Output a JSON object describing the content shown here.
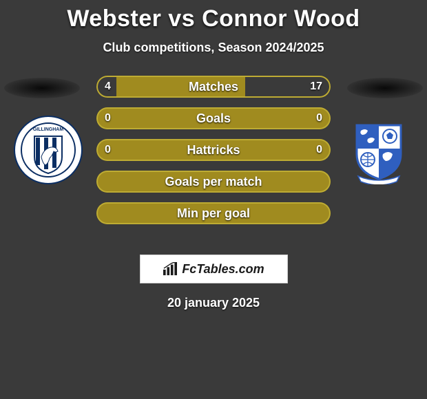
{
  "title": "Webster vs Connor Wood",
  "subtitle": "Club competitions, Season 2024/2025",
  "date_line": "20 january 2025",
  "logo_text": "FcTables.com",
  "colors": {
    "background": "#3a3a3a",
    "bar_fill": "#a08b1f",
    "bar_border": "#beac33",
    "bar_inner_dark": "#3a3a3a",
    "text": "#ffffff",
    "logo_bg": "#ffffff",
    "logo_text": "#1a1a1a"
  },
  "stats": [
    {
      "label": "Matches",
      "left_value": "4",
      "right_value": "17",
      "left_num": 4,
      "right_num": 17,
      "show_values": true
    },
    {
      "label": "Goals",
      "left_value": "0",
      "right_value": "0",
      "left_num": 0,
      "right_num": 0,
      "show_values": true
    },
    {
      "label": "Hattricks",
      "left_value": "0",
      "right_value": "0",
      "left_num": 0,
      "right_num": 0,
      "show_values": true
    },
    {
      "label": "Goals per match",
      "left_value": "",
      "right_value": "",
      "left_num": 0,
      "right_num": 0,
      "show_values": false
    },
    {
      "label": "Min per goal",
      "left_value": "",
      "right_value": "",
      "left_num": 0,
      "right_num": 0,
      "show_values": false
    }
  ],
  "crest_left": {
    "name": "Gillingham",
    "primary": "#0b2e63",
    "stripe": "#ffffff",
    "circle_bg": "#ffffff"
  },
  "crest_right": {
    "name": "Tranmere Rovers",
    "primary": "#2f5fbf",
    "secondary": "#ffffff",
    "circle_bg": "#ffffff"
  }
}
